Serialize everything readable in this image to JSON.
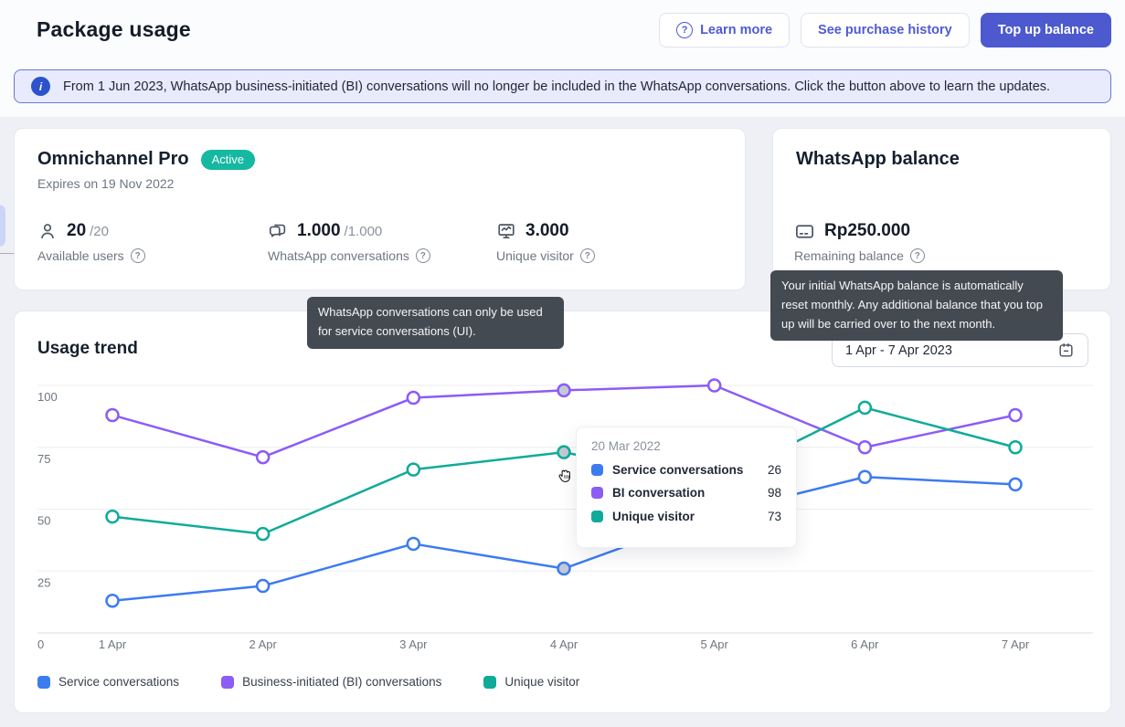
{
  "header": {
    "title": "Package usage",
    "learn_more": "Learn more",
    "purchase_history": "See purchase history",
    "top_up": "Top up balance"
  },
  "banner": {
    "text": "From 1 Jun 2023, WhatsApp business-initiated (BI) conversations will no longer be included in the WhatsApp conversations. Click the button above to learn the updates."
  },
  "package_card": {
    "title": "Omnichannel Pro",
    "badge": "Active",
    "expiry": "Expires on 19 Nov 2022",
    "stats": [
      {
        "icon": "user-icon",
        "value": "20",
        "quota": "/20",
        "label": "Available users"
      },
      {
        "icon": "chat-icon",
        "value": "1.000",
        "quota": "/1.000",
        "label": "WhatsApp conversations"
      },
      {
        "icon": "monitor-icon",
        "value": "3.000",
        "quota": "",
        "label": "Unique visitor"
      }
    ]
  },
  "balance_card": {
    "title": "WhatsApp balance",
    "value": "Rp250.000",
    "label": "Remaining balance"
  },
  "tooltips": {
    "conversations": "WhatsApp conversations can only be used for service conversations (UI).",
    "balance": "Your initial WhatsApp balance is automatically reset monthly. Any additional balance that you top up will be carried over to the next month."
  },
  "usage_trend": {
    "title": "Usage trend",
    "date_range": "1 Apr - 7 Apr 2023",
    "hover_tooltip": {
      "date": "20 Mar 2022",
      "rows": [
        {
          "label": "Service conversations",
          "value": "26",
          "color": "#3d7bf0"
        },
        {
          "label": "BI conversation",
          "value": "98",
          "color": "#8b5cf6"
        },
        {
          "label": "Unique visitor",
          "value": "73",
          "color": "#0fab99"
        }
      ]
    }
  },
  "chart_data": {
    "type": "line",
    "title": "Usage trend",
    "categories": [
      "1 Apr",
      "2 Apr",
      "3 Apr",
      "4 Apr",
      "5 Apr",
      "6 Apr",
      "7 Apr"
    ],
    "series": [
      {
        "name": "Service conversations",
        "color": "#3d7bf0",
        "values": [
          13,
          19,
          36,
          26,
          48,
          63,
          60
        ]
      },
      {
        "name": "Business-initiated (BI) conversations",
        "color": "#8b5cf6",
        "values": [
          88,
          71,
          95,
          98,
          100,
          75,
          88
        ]
      },
      {
        "name": "Unique visitor",
        "color": "#0fab99",
        "values": [
          47,
          40,
          66,
          73,
          61,
          91,
          75
        ]
      }
    ],
    "yticks": [
      0,
      25,
      50,
      75,
      100
    ],
    "ylim": [
      0,
      105
    ],
    "origin_label": "0",
    "grid": true,
    "legend_position": "bottom",
    "hover_index": 3,
    "legend": [
      {
        "label": "Service conversations",
        "color": "#3d7bf0"
      },
      {
        "label": "Business-initiated (BI) conversations",
        "color": "#8b5cf6"
      },
      {
        "label": "Unique visitor",
        "color": "#0fab99"
      }
    ]
  },
  "icons": {
    "question_mark": "?",
    "info": "i"
  },
  "colors": {
    "accent": "#4c59cf",
    "badge_active": "#15b8a0",
    "banner_bg": "#e7ebfc",
    "hover_point_fill": "#c3c9d4",
    "gridline": "#ecedf1",
    "axis_line": "#d9dde3"
  }
}
